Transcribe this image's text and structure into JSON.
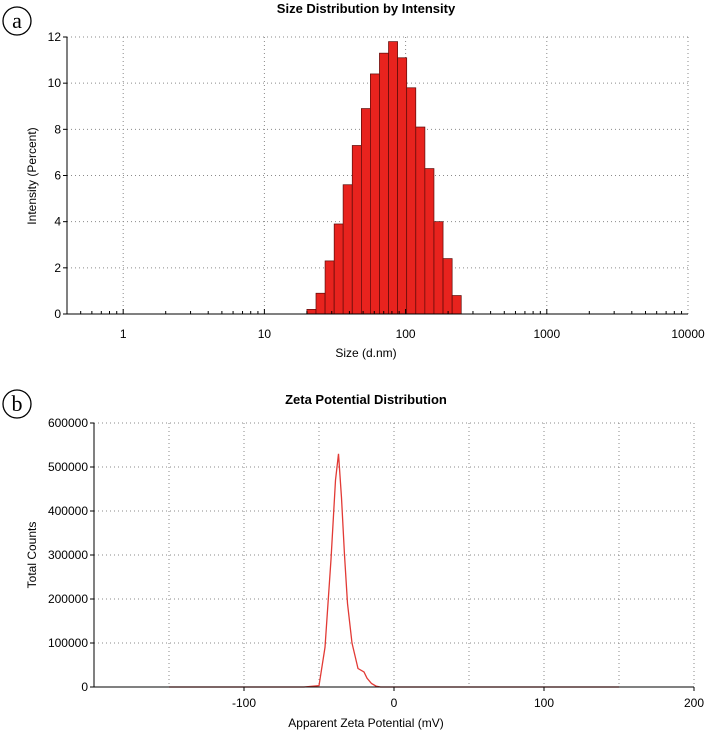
{
  "figure": {
    "panel_a_letter": "a",
    "panel_b_letter": "b"
  },
  "colors": {
    "bar_fill": "#e8231e",
    "bar_stroke": "#5a0a08",
    "line": "#e23a35",
    "grid": "#8a8a8a",
    "axis": "#000000"
  },
  "chart_data": [
    {
      "type": "bar",
      "title": "Size Distribution by Intensity",
      "xlabel": "Size (d.nm)",
      "ylabel": "Intensity (Percent)",
      "xscale": "log",
      "xlim": [
        0.4,
        10000
      ],
      "ylim": [
        0,
        12
      ],
      "xticks": [
        1,
        10,
        100,
        1000,
        10000
      ],
      "xtick_labels": [
        "1",
        "10",
        "100",
        "1000",
        "10000"
      ],
      "yticks": [
        0,
        2,
        4,
        6,
        8,
        10,
        12
      ],
      "ytick_labels": [
        "0",
        "2",
        "4",
        "6",
        "8",
        "10",
        "12"
      ],
      "grid": true,
      "series": [
        {
          "values": [
            {
              "x": 20.0,
              "y": 0.2
            },
            {
              "x": 23.2,
              "y": 0.9
            },
            {
              "x": 26.9,
              "y": 2.3
            },
            {
              "x": 31.2,
              "y": 3.9
            },
            {
              "x": 36.1,
              "y": 5.6
            },
            {
              "x": 41.9,
              "y": 7.3
            },
            {
              "x": 48.6,
              "y": 8.9
            },
            {
              "x": 56.3,
              "y": 10.4
            },
            {
              "x": 65.3,
              "y": 11.3
            },
            {
              "x": 75.7,
              "y": 11.8
            },
            {
              "x": 87.8,
              "y": 11.1
            },
            {
              "x": 101.8,
              "y": 9.8
            },
            {
              "x": 118.1,
              "y": 8.1
            },
            {
              "x": 136.9,
              "y": 6.3
            },
            {
              "x": 158.8,
              "y": 4.0
            },
            {
              "x": 184.2,
              "y": 2.4
            },
            {
              "x": 213.6,
              "y": 0.8
            }
          ]
        }
      ]
    },
    {
      "type": "line",
      "title": "Zeta Potential Distribution",
      "xlabel": "Apparent Zeta Potential (mV)",
      "ylabel": "Total Counts",
      "xlim": [
        -200,
        200
      ],
      "ylim": [
        0,
        600000
      ],
      "xticks": [
        -100,
        0,
        100,
        200
      ],
      "xtick_labels": [
        "-100",
        "0",
        "100",
        "200"
      ],
      "yticks": [
        0,
        100000,
        200000,
        300000,
        400000,
        500000,
        600000
      ],
      "ytick_labels": [
        "0",
        "100000",
        "200000",
        "300000",
        "400000",
        "500000",
        "600000"
      ],
      "grid": true,
      "series": [
        {
          "x": [
            -150,
            -60,
            -50,
            -46,
            -42,
            -39,
            -37,
            -35,
            -33,
            -31,
            -28,
            -24,
            -20,
            -18,
            -15,
            -12,
            -9,
            0,
            50,
            150
          ],
          "y": [
            0,
            0,
            3000,
            90000,
            290000,
            470000,
            530000,
            430000,
            300000,
            190000,
            100000,
            42000,
            34000,
            20000,
            8000,
            2000,
            0,
            0,
            0,
            0
          ]
        }
      ]
    }
  ]
}
